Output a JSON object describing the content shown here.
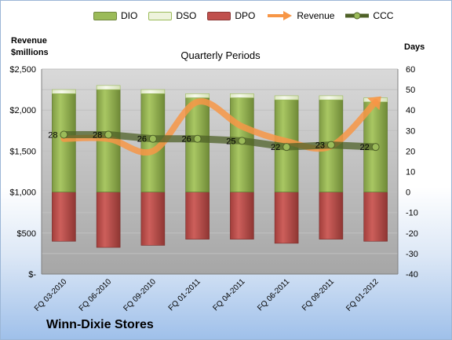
{
  "chart_data": {
    "type": "bar",
    "title": "Quarterly Periods",
    "company": "Winn-Dixie Stores",
    "left_axis_title": [
      "Revenue",
      "$millions"
    ],
    "right_axis_title": "Days",
    "categories": [
      "FQ 03-2010",
      "FQ 06-2010",
      "FQ 09-2010",
      "FQ 01-2011",
      "FQ 04-2011",
      "FQ 06-2011",
      "FQ 09-2011",
      "FQ 01-2012"
    ],
    "left_ticks": [
      "$-",
      "$500",
      "$1,000",
      "$1,500",
      "$2,000",
      "$2,500"
    ],
    "left_ylim": [
      0,
      2500
    ],
    "right_ylim": [
      -40,
      60
    ],
    "right_ticks": [
      -40,
      -30,
      -20,
      -10,
      0,
      10,
      20,
      30,
      40,
      50,
      60
    ],
    "legend": [
      {
        "name": "DIO",
        "color": "#9bbb59"
      },
      {
        "name": "DSO",
        "color": "#eef3dc"
      },
      {
        "name": "DPO",
        "color": "#c0504d"
      },
      {
        "name": "Revenue",
        "color": "#f79646"
      },
      {
        "name": "CCC",
        "color": "#4f6228"
      }
    ],
    "series": [
      {
        "name": "DIO",
        "axis": "days",
        "values": [
          48,
          50,
          48,
          46,
          46,
          45,
          45,
          44
        ]
      },
      {
        "name": "DSO",
        "axis": "days",
        "values": [
          2,
          2,
          2,
          2,
          2,
          2,
          2,
          2
        ]
      },
      {
        "name": "DPO",
        "axis": "days",
        "values": [
          -24,
          -27,
          -26,
          -23,
          -23,
          -25,
          -23,
          -24
        ]
      },
      {
        "name": "Revenue",
        "axis": "revenue",
        "values": [
          1650,
          1650,
          1500,
          2100,
          1800,
          1620,
          1560,
          2100
        ]
      },
      {
        "name": "CCC",
        "axis": "days",
        "values": [
          28,
          28,
          26,
          26,
          25,
          22,
          23,
          22
        ],
        "labels": [
          "28",
          "28",
          "26",
          "26",
          "25",
          "22",
          "23",
          "22"
        ]
      }
    ]
  }
}
